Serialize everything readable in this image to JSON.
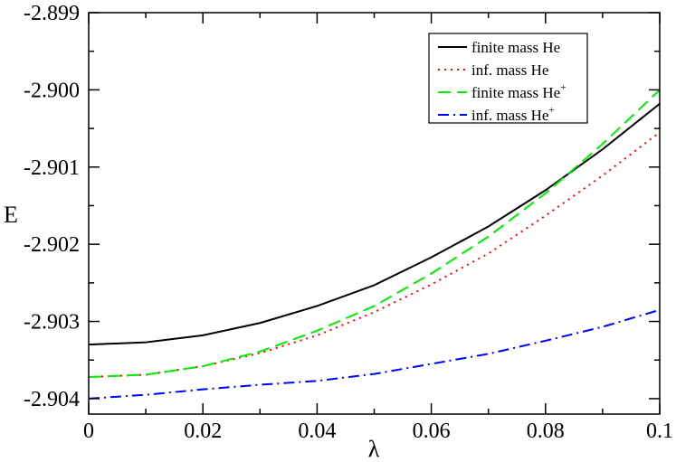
{
  "chart_data": {
    "type": "line",
    "xlabel": "λ",
    "ylabel": "E",
    "xlim": [
      0,
      0.1
    ],
    "ylim": [
      -2.9042,
      -2.899
    ],
    "x_ticks": [
      0,
      0.02,
      0.04,
      0.06,
      0.08,
      0.1
    ],
    "x_tick_labels": [
      "0",
      "0.02",
      "0.04",
      "0.06",
      "0.08",
      "0.1"
    ],
    "y_ticks": [
      -2.904,
      -2.903,
      -2.902,
      -2.901,
      -2.9,
      -2.899
    ],
    "y_tick_labels": [
      "-2.904",
      "-2.903",
      "-2.902",
      "-2.901",
      "-2.900",
      "-2.899"
    ],
    "grid": false,
    "legend_position": "top-right",
    "x": [
      0,
      0.01,
      0.02,
      0.03,
      0.04,
      0.05,
      0.06,
      0.07,
      0.08,
      0.09,
      0.1
    ],
    "series": [
      {
        "name": "finite mass He",
        "name_sup": "",
        "color": "#000000",
        "dash": "solid",
        "values": [
          -2.9033,
          -2.90327,
          -2.90318,
          -2.90302,
          -2.9028,
          -2.90253,
          -2.90217,
          -2.90177,
          -2.9013,
          -2.90077,
          -2.90018
        ]
      },
      {
        "name": "inf. mass He",
        "name_sup": "",
        "color": "#ff0000",
        "dash": "dotted",
        "values": [
          -2.90372,
          -2.90369,
          -2.90358,
          -2.90341,
          -2.90318,
          -2.90288,
          -2.90252,
          -2.90212,
          -2.90163,
          -2.90111,
          -2.90055
        ]
      },
      {
        "name": "finite mass He",
        "name_sup": "+",
        "color": "#00ee00",
        "dash": "dashed",
        "values": [
          -2.90372,
          -2.90369,
          -2.90358,
          -2.90339,
          -2.90312,
          -2.9028,
          -2.90238,
          -2.9019,
          -2.90134,
          -2.9007,
          -2.9
        ]
      },
      {
        "name": "inf. mass He",
        "name_sup": "+",
        "color": "#0000ff",
        "dash": "dashdot",
        "values": [
          -2.904,
          -2.90395,
          -2.90388,
          -2.90382,
          -2.90377,
          -2.90368,
          -2.90355,
          -2.90342,
          -2.90325,
          -2.90307,
          -2.90285
        ]
      }
    ]
  }
}
